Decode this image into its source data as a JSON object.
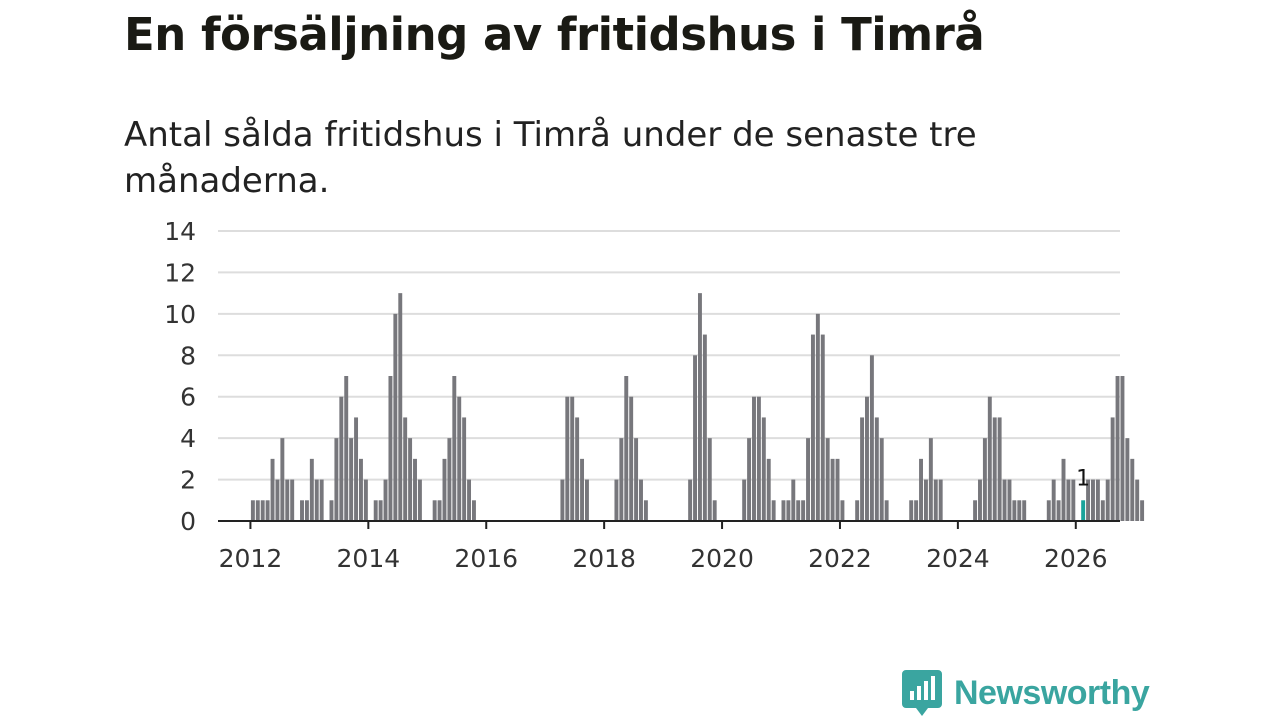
{
  "title": "En försäljning av fritidshus i Timrå",
  "subtitle": "Antal sålda fritidshus i Timrå under de senaste tre månaderna.",
  "brand": {
    "name": "Newsworthy",
    "color": "#3aa5a0",
    "icon": "bar-chart-speech-bubble-icon"
  },
  "colors": {
    "bar": "#77777c",
    "highlight": "#1aa39a",
    "grid": "#dddddd",
    "axis": "#222222"
  },
  "chart_data": {
    "type": "bar",
    "title": "En försäljning av fritidshus i Timrå",
    "xlabel": "",
    "ylabel": "",
    "ylim": [
      0,
      14
    ],
    "yticks": [
      0,
      2,
      4,
      6,
      8,
      10,
      12,
      14
    ],
    "xlim": [
      2011.45,
      2026.75
    ],
    "xticks": [
      {
        "label": "2012",
        "value": 2012
      },
      {
        "label": "2014",
        "value": 2014
      },
      {
        "label": "2016",
        "value": 2016
      },
      {
        "label": "2018",
        "value": 2018
      },
      {
        "label": "2020",
        "value": 2020
      },
      {
        "label": "2022",
        "value": 2022
      },
      {
        "label": "2024",
        "value": 2024
      },
      {
        "label": "2026",
        "value": 2026
      }
    ],
    "grid": true,
    "frequency": "monthly",
    "start": "2011-01",
    "values": [
      0,
      0,
      0,
      0,
      0,
      0,
      0,
      0,
      0,
      0,
      0,
      0,
      1,
      1,
      1,
      1,
      3,
      2,
      4,
      2,
      2,
      0,
      1,
      1,
      3,
      2,
      2,
      0,
      1,
      4,
      6,
      7,
      4,
      5,
      3,
      2,
      0,
      1,
      1,
      2,
      7,
      10,
      11,
      5,
      4,
      3,
      2,
      0,
      0,
      1,
      1,
      3,
      4,
      7,
      6,
      5,
      2,
      1,
      0,
      0,
      0,
      0,
      0,
      0,
      0,
      0,
      0,
      0,
      0,
      0,
      0,
      0,
      0,
      0,
      0,
      2,
      6,
      6,
      5,
      3,
      2,
      0,
      0,
      0,
      0,
      0,
      2,
      4,
      7,
      6,
      4,
      2,
      1,
      0,
      0,
      0,
      0,
      0,
      0,
      0,
      0,
      2,
      8,
      11,
      9,
      4,
      1,
      0,
      0,
      0,
      0,
      0,
      2,
      4,
      6,
      6,
      5,
      3,
      1,
      0,
      1,
      1,
      2,
      1,
      1,
      4,
      9,
      10,
      9,
      4,
      3,
      3,
      1,
      0,
      0,
      1,
      5,
      6,
      8,
      5,
      4,
      1,
      0,
      0,
      0,
      0,
      1,
      1,
      3,
      2,
      4,
      2,
      2,
      0,
      0,
      0,
      0,
      0,
      0,
      1,
      2,
      4,
      6,
      5,
      5,
      2,
      2,
      1,
      1,
      1,
      0,
      0,
      0,
      0,
      1,
      2,
      1,
      3,
      2,
      2,
      0,
      1,
      2,
      2,
      2,
      1,
      2,
      5,
      7,
      7,
      4,
      3,
      2,
      1
    ],
    "highlight": {
      "index": 181,
      "label": "1"
    }
  }
}
